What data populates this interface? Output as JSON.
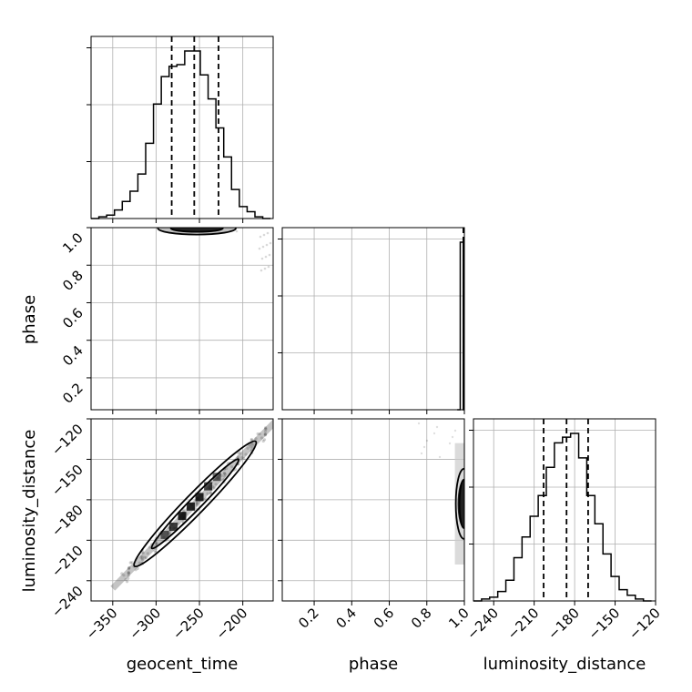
{
  "chart_data": {
    "type": "corner",
    "parameters": [
      "geocent_time",
      "phase",
      "luminosity_distance"
    ],
    "axis_labels": {
      "geocent_time": "geocent_time",
      "phase": "phase",
      "luminosity_distance": "luminosity_distance"
    },
    "ranges": {
      "geocent_time": [
        -375,
        -165
      ],
      "phase": [
        0.03,
        1.0
      ],
      "luminosity_distance": [
        -255,
        -120
      ]
    },
    "ticks": {
      "geocent_time": [
        -350,
        -300,
        -250,
        -200
      ],
      "phase": [
        0.2,
        0.4,
        0.6,
        0.8,
        1.0
      ],
      "luminosity_distance": [
        -240,
        -210,
        -180,
        -150,
        -120
      ]
    },
    "tick_labels": {
      "geocent_time": [
        "−350",
        "−300",
        "−250",
        "−200"
      ],
      "phase": [
        "0.2",
        "0.4",
        "0.6",
        "0.8",
        "1.0"
      ],
      "luminosity_distance": [
        "−240",
        "−210",
        "−180",
        "−150",
        "−120"
      ]
    },
    "histograms": {
      "geocent_time": {
        "bin_edges": [
          -375,
          -366,
          -357,
          -348,
          -339,
          -330,
          -321,
          -312,
          -303,
          -294,
          -285,
          -276,
          -267,
          -258,
          -249,
          -240,
          -231,
          -222,
          -213,
          -204,
          -195,
          -186,
          -177,
          -168
        ],
        "counts": [
          0,
          1,
          2,
          5,
          10,
          16,
          26,
          44,
          67,
          83,
          89,
          90,
          98,
          98,
          84,
          70,
          53,
          36,
          17,
          7,
          4,
          1,
          0
        ]
      },
      "phase": {
        "bin_edges": [
          0.962,
          0.978,
          0.994,
          1.0
        ],
        "counts": [
          0,
          100,
          0
        ]
      },
      "luminosity_distance": {
        "bin_edges": [
          -255,
          -249,
          -243,
          -237,
          -231,
          -225,
          -219,
          -213,
          -207,
          -201,
          -195,
          -189,
          -183,
          -177,
          -171,
          -165,
          -159,
          -153,
          -147,
          -141,
          -135,
          -129,
          -123
        ],
        "counts": [
          0,
          1,
          2,
          5,
          11,
          23,
          34,
          45,
          56,
          71,
          84,
          87,
          89,
          76,
          56,
          41,
          25,
          13,
          6,
          3,
          1,
          0
        ]
      }
    },
    "quantiles": {
      "geocent_time": [
        -282,
        -256,
        -228
      ],
      "phase": [
        0.999,
        0.9995,
        1.0
      ],
      "luminosity_distance": [
        -203,
        -186,
        -170
      ]
    },
    "contours": {
      "luminosity_distance_vs_geocent_time": {
        "center": [
          -255,
          -183
        ],
        "slope": 0.66,
        "half_length": [
          50,
          70
        ],
        "half_width": [
          3,
          5
        ]
      },
      "phase_vs_geocent_time": {
        "center": [
          -253,
          0.997
        ],
        "half_x": [
          30,
          45
        ],
        "half_y": [
          0.006,
          0.012
        ]
      },
      "luminosity_distance_vs_phase": {
        "center": [
          0.998,
          -183
        ],
        "half_x": [
          0.004,
          0.008
        ],
        "half_y": [
          18,
          26
        ]
      }
    },
    "density_blocks": {
      "luminosity_distance_vs_geocent_time": [
        [
          -270,
          -192,
          0.25
        ],
        [
          -260,
          -185,
          0.3
        ],
        [
          -250,
          -178,
          0.3
        ],
        [
          -280,
          -200,
          0.5
        ],
        [
          -240,
          -170,
          0.5
        ],
        [
          -290,
          -206,
          0.7
        ],
        [
          -230,
          -163,
          0.7
        ]
      ]
    },
    "grid": true,
    "legend": "none"
  }
}
